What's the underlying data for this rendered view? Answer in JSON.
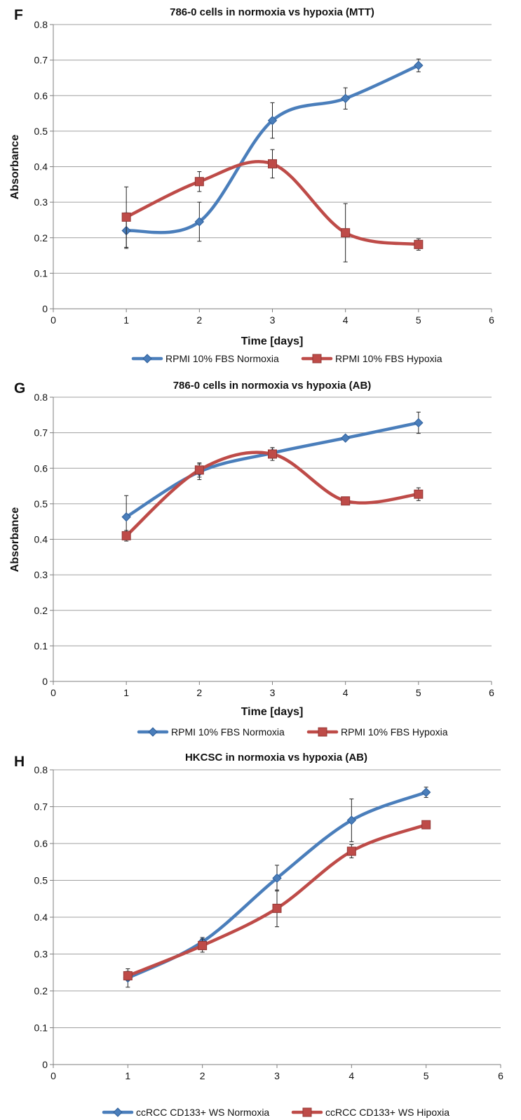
{
  "colors": {
    "normoxia": "#4a7ebb",
    "hypoxia": "#be4b48",
    "grid": "#a0a0a0",
    "axis": "#7f7f7f",
    "errorbar": "#222222"
  },
  "chart_data": [
    {
      "type": "line",
      "panel": "F",
      "title": "786-0 cells in normoxia vs hypoxia (MTT)",
      "xlabel": "Time [days]",
      "ylabel": "Absorbance",
      "xlim": [
        0,
        6
      ],
      "ylim": [
        0,
        0.8
      ],
      "xticks": [
        "0",
        "1",
        "2",
        "3",
        "4",
        "5",
        "6"
      ],
      "yticks": [
        "0",
        "0.1",
        "0.2",
        "0.3",
        "0.4",
        "0.5",
        "0.6",
        "0.7",
        "0.8"
      ],
      "grid": true,
      "legend": "bottom",
      "series": [
        {
          "name": "RPMI 10% FBS Normoxia",
          "marker": "diamond",
          "x": [
            1,
            2,
            3,
            4,
            5
          ],
          "y": [
            0.22,
            0.245,
            0.53,
            0.592,
            0.685
          ],
          "err": [
            0.05,
            0.055,
            0.05,
            0.03,
            0.018
          ]
        },
        {
          "name": "RPMI 10% FBS Hypoxia",
          "marker": "square",
          "x": [
            1,
            2,
            3,
            4,
            5
          ],
          "y": [
            0.258,
            0.358,
            0.408,
            0.214,
            0.181
          ],
          "err": [
            0.085,
            0.028,
            0.04,
            0.082,
            0.016
          ]
        }
      ]
    },
    {
      "type": "line",
      "panel": "G",
      "title": "786-0 cells in normoxia vs hypoxia (AB)",
      "xlabel": "Time [days]",
      "ylabel": "Absorbance",
      "xlim": [
        0,
        6
      ],
      "ylim": [
        0,
        0.8
      ],
      "xticks": [
        "0",
        "1",
        "2",
        "3",
        "4",
        "5",
        "6"
      ],
      "yticks": [
        "0",
        "0.1",
        "0.2",
        "0.3",
        "0.4",
        "0.5",
        "0.6",
        "0.7",
        "0.8"
      ],
      "grid": true,
      "legend": "bottom",
      "series": [
        {
          "name": "RPMI 10% FBS Normoxia",
          "marker": "diamond",
          "x": [
            1,
            2,
            3,
            4,
            5
          ],
          "y": [
            0.463,
            0.59,
            0.643,
            0.685,
            0.728
          ],
          "err": [
            0.06,
            0.022,
            0.015,
            0.005,
            0.03
          ]
        },
        {
          "name": "RPMI 10% FBS Hypoxia",
          "marker": "square",
          "x": [
            1,
            2,
            3,
            4,
            5
          ],
          "y": [
            0.41,
            0.595,
            0.64,
            0.508,
            0.527
          ],
          "err": [
            0.015,
            0.02,
            0.018,
            0.006,
            0.018
          ]
        }
      ]
    },
    {
      "type": "line",
      "panel": "H",
      "title": "HKCSC in normoxia vs hypoxia (AB)",
      "xlabel": "",
      "ylabel": "",
      "xlim": [
        0,
        6
      ],
      "ylim": [
        0,
        0.8
      ],
      "xticks": [
        "0",
        "1",
        "2",
        "3",
        "4",
        "5",
        "6"
      ],
      "yticks": [
        "0",
        "0.1",
        "0.2",
        "0.3",
        "0.4",
        "0.5",
        "0.6",
        "0.7",
        "0.8"
      ],
      "grid": true,
      "legend": "bottom",
      "series": [
        {
          "name": "ccRCC CD133+ WS Normoxia",
          "marker": "diamond",
          "x": [
            1,
            2,
            3,
            4,
            5
          ],
          "y": [
            0.235,
            0.333,
            0.506,
            0.663,
            0.739
          ],
          "err": [
            0.025,
            0.012,
            0.035,
            0.058,
            0.014
          ]
        },
        {
          "name": "ccRCC CD133+ WS Hipoxia",
          "marker": "square",
          "x": [
            1,
            2,
            3,
            4,
            5
          ],
          "y": [
            0.241,
            0.323,
            0.424,
            0.579,
            0.651
          ],
          "err": [
            0.012,
            0.018,
            0.05,
            0.018,
            0.006
          ]
        }
      ]
    }
  ]
}
